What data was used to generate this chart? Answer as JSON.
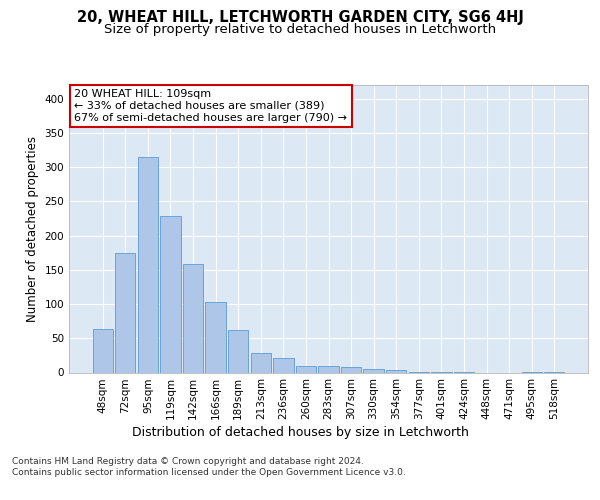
{
  "title": "20, WHEAT HILL, LETCHWORTH GARDEN CITY, SG6 4HJ",
  "subtitle": "Size of property relative to detached houses in Letchworth",
  "xlabel": "Distribution of detached houses by size in Letchworth",
  "ylabel": "Number of detached properties",
  "categories": [
    "48sqm",
    "72sqm",
    "95sqm",
    "119sqm",
    "142sqm",
    "166sqm",
    "189sqm",
    "213sqm",
    "236sqm",
    "260sqm",
    "283sqm",
    "307sqm",
    "330sqm",
    "354sqm",
    "377sqm",
    "401sqm",
    "424sqm",
    "448sqm",
    "471sqm",
    "495sqm",
    "518sqm"
  ],
  "values": [
    63,
    175,
    315,
    228,
    158,
    103,
    62,
    28,
    21,
    9,
    10,
    8,
    5,
    3,
    1,
    1,
    1,
    0,
    0,
    1,
    1
  ],
  "bar_color": "#aec6e8",
  "bar_edge_color": "#5b9bd5",
  "background_color": "#dde8f5",
  "grid_color": "#ffffff",
  "annotation_text": "20 WHEAT HILL: 109sqm\n← 33% of detached houses are smaller (389)\n67% of semi-detached houses are larger (790) →",
  "annotation_box_color": "#cc0000",
  "ylim": [
    0,
    420
  ],
  "yticks": [
    0,
    50,
    100,
    150,
    200,
    250,
    300,
    350,
    400
  ],
  "footer_text": "Contains HM Land Registry data © Crown copyright and database right 2024.\nContains public sector information licensed under the Open Government Licence v3.0.",
  "title_fontsize": 10.5,
  "subtitle_fontsize": 9.5,
  "xlabel_fontsize": 9,
  "ylabel_fontsize": 8.5,
  "tick_fontsize": 7.5,
  "annotation_fontsize": 8,
  "footer_fontsize": 6.5
}
